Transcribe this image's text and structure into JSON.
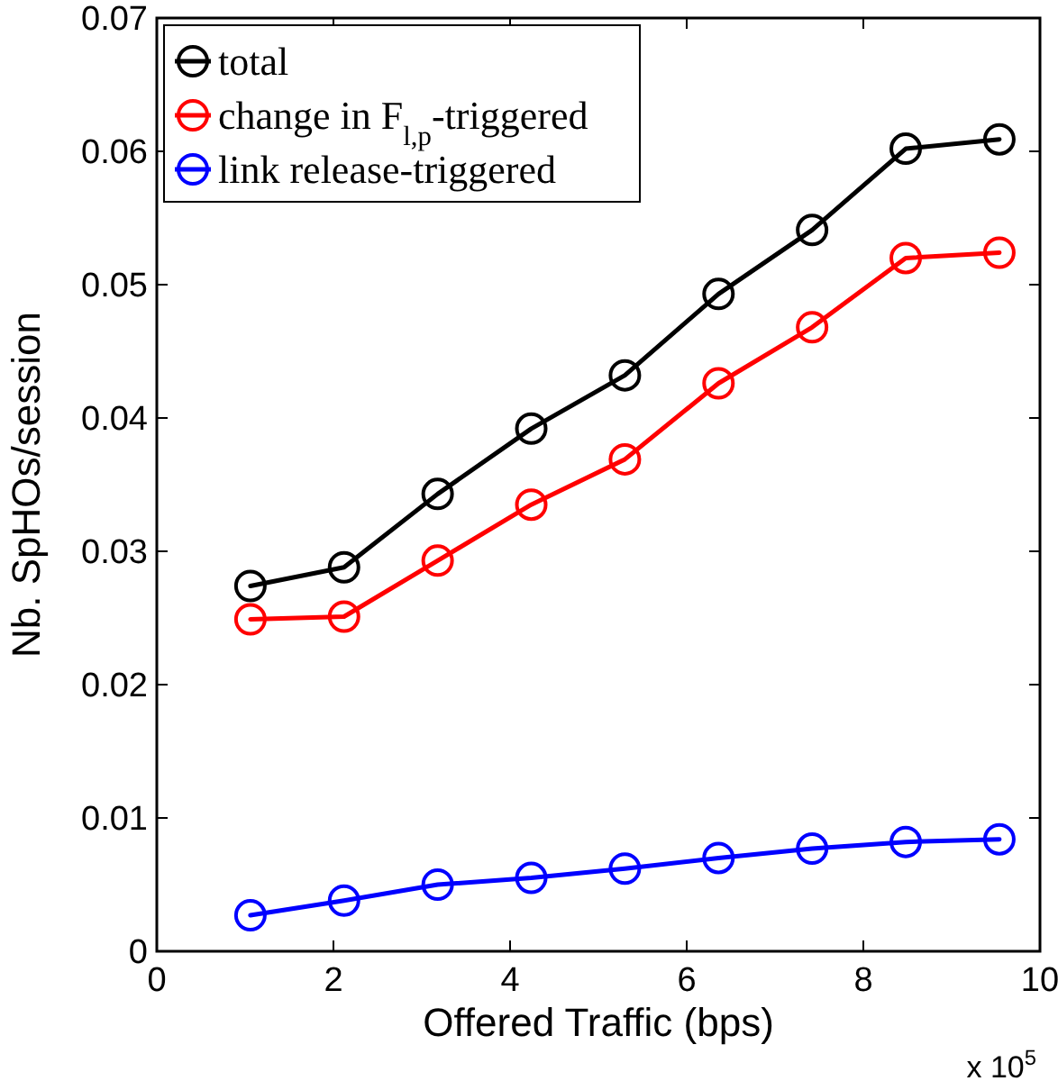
{
  "chart_data": {
    "type": "line",
    "xlabel": "Offered Traffic (bps)",
    "ylabel": "Nb. SpHOs/session",
    "x": [
      1.06,
      2.12,
      3.18,
      4.24,
      5.3,
      6.36,
      7.42,
      8.48,
      9.54
    ],
    "series": [
      {
        "name": "total",
        "color": "#000000",
        "values": [
          0.0274,
          0.0288,
          0.0343,
          0.0392,
          0.0432,
          0.0493,
          0.0541,
          0.0602,
          0.0609
        ]
      },
      {
        "name": "change in F$_{l,p}$-triggered",
        "color": "#ff0000",
        "values": [
          0.0249,
          0.0251,
          0.0293,
          0.0335,
          0.0369,
          0.0426,
          0.0468,
          0.052,
          0.0524
        ]
      },
      {
        "name": "link release-triggered",
        "color": "#0000ff",
        "values": [
          0.0027,
          0.0038,
          0.005,
          0.0055,
          0.0062,
          0.007,
          0.0077,
          0.0082,
          0.0084
        ]
      }
    ],
    "xlim": [
      0,
      10
    ],
    "xticks": [
      0,
      2,
      4,
      6,
      8,
      10
    ],
    "ylim": [
      0,
      0.07
    ],
    "yticks": [
      0,
      0.01,
      0.02,
      0.03,
      0.04,
      0.05,
      0.06,
      0.07
    ],
    "annotations": [
      "x 10$^{5}$"
    ],
    "legend": "top left",
    "marker": "circle",
    "grid": false
  }
}
